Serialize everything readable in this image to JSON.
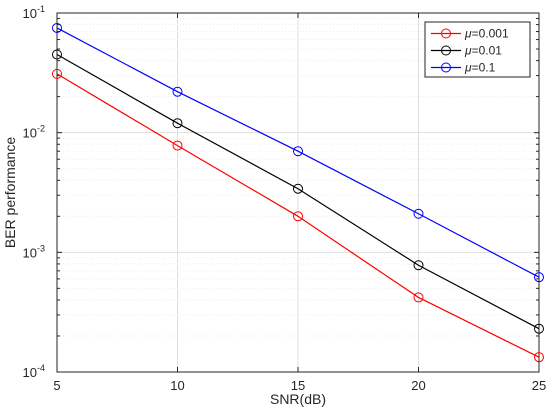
{
  "chart_data": {
    "type": "line",
    "title": "",
    "xlabel": "SNR(dB)",
    "ylabel": "BER performance",
    "x": [
      5,
      10,
      15,
      20,
      25
    ],
    "xlim": [
      5,
      25
    ],
    "ylim": [
      0.0001,
      0.1
    ],
    "yscale": "log",
    "grid": true,
    "minor_grid": true,
    "legend_position": "top-right",
    "x_tick_labels": [
      "5",
      "10",
      "15",
      "20",
      "25"
    ],
    "y_ticks": [
      {
        "value": 0.1,
        "base": "10",
        "exp": "-1"
      },
      {
        "value": 0.01,
        "base": "10",
        "exp": "-2"
      },
      {
        "value": 0.001,
        "base": "10",
        "exp": "-3"
      },
      {
        "value": 0.0001,
        "base": "10",
        "exp": "-4"
      }
    ],
    "series": [
      {
        "name": "μ=0.001",
        "name_symbol": "μ",
        "name_rest": "=0.001",
        "color": "#ff0000",
        "marker": "circle",
        "values": [
          0.031,
          0.0078,
          0.002,
          0.00042,
          0.000133
        ]
      },
      {
        "name": "μ=0.01",
        "name_symbol": "μ",
        "name_rest": "=0.01",
        "color": "#000000",
        "marker": "circle",
        "values": [
          0.045,
          0.012,
          0.0034,
          0.00078,
          0.00023
        ]
      },
      {
        "name": "μ=0.1",
        "name_symbol": "μ",
        "name_rest": "=0.1",
        "color": "#0000ff",
        "marker": "circle",
        "values": [
          0.075,
          0.022,
          0.007,
          0.0021,
          0.00062
        ]
      }
    ]
  }
}
